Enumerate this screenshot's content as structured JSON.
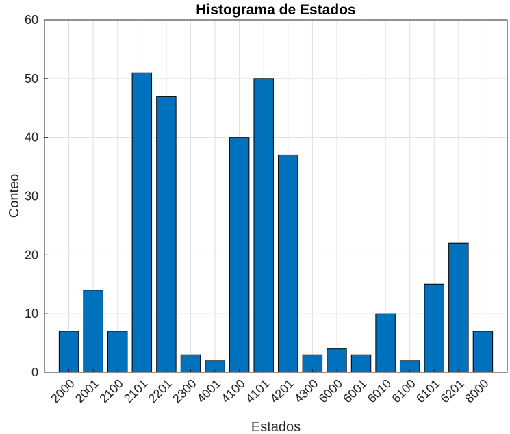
{
  "chart_data": {
    "type": "bar",
    "title": "Histograma de Estados",
    "xlabel": "Estados",
    "ylabel": "Conteo",
    "categories": [
      "2000",
      "2001",
      "2100",
      "2101",
      "2201",
      "2300",
      "4001",
      "4100",
      "4101",
      "4201",
      "4300",
      "6000",
      "6001",
      "6010",
      "6100",
      "6101",
      "6201",
      "8000"
    ],
    "values": [
      7,
      14,
      7,
      51,
      47,
      3,
      2,
      40,
      50,
      37,
      3,
      4,
      3,
      10,
      2,
      15,
      22,
      7
    ],
    "ylim": [
      0,
      60
    ],
    "yticks": [
      0,
      10,
      20,
      30,
      40,
      50,
      60
    ],
    "grid": true,
    "bar_color": "#0072BD"
  }
}
